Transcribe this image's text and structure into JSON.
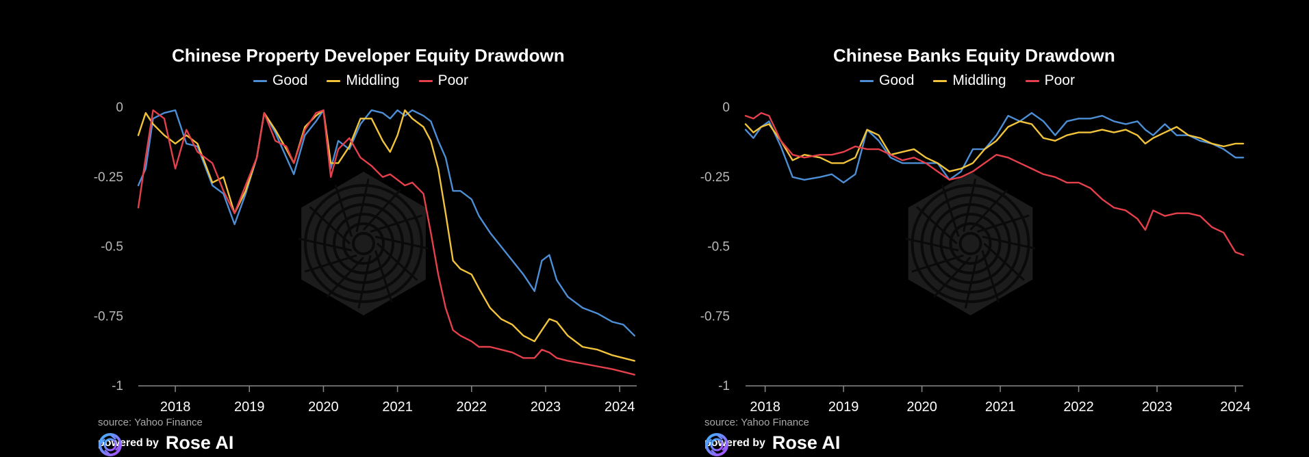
{
  "footer": {
    "source": "source: Yahoo Finance",
    "powered_by": "powered by",
    "brand": "Rose AI"
  },
  "logo_icon": "rose-ai-logo-icon",
  "watermark_icon": "rose-ai-hexagon-watermark-icon",
  "colors": {
    "Good": "#4d8fd6",
    "Middling": "#f2c43b",
    "Poor": "#e5404b",
    "axis": "#8a8a8a",
    "background": "#000000"
  },
  "chart_data": [
    {
      "type": "line",
      "title": "Chinese Property Developer Equity Drawdown",
      "xlabel": "",
      "ylabel": "",
      "ylim": [
        -1,
        0
      ],
      "xlim": [
        2017.5,
        2024.23
      ],
      "yticks": [
        0,
        -0.25,
        -0.5,
        -0.75,
        -1
      ],
      "ytick_labels": [
        "0",
        "-0.25",
        "-0.5",
        "-0.75",
        "-1"
      ],
      "xticks": [
        2018,
        2019,
        2020,
        2021,
        2022,
        2023,
        2024
      ],
      "xtick_labels": [
        "2018",
        "2019",
        "2020",
        "2021",
        "2022",
        "2023",
        "2024"
      ],
      "legend": "top-center",
      "grid": false,
      "x": [
        2017.5,
        2017.6,
        2017.7,
        2017.85,
        2018.0,
        2018.15,
        2018.3,
        2018.5,
        2018.65,
        2018.8,
        2018.95,
        2019.1,
        2019.2,
        2019.35,
        2019.5,
        2019.6,
        2019.75,
        2019.9,
        2020.0,
        2020.1,
        2020.2,
        2020.35,
        2020.5,
        2020.65,
        2020.8,
        2020.9,
        2021.0,
        2021.1,
        2021.2,
        2021.35,
        2021.45,
        2021.55,
        2021.65,
        2021.75,
        2021.85,
        2022.0,
        2022.1,
        2022.25,
        2022.4,
        2022.55,
        2022.7,
        2022.85,
        2022.95,
        2023.05,
        2023.15,
        2023.3,
        2023.5,
        2023.7,
        2023.9,
        2024.05,
        2024.2
      ],
      "series": [
        {
          "name": "Good",
          "values": [
            -0.28,
            -0.22,
            -0.04,
            -0.02,
            -0.01,
            -0.13,
            -0.14,
            -0.28,
            -0.31,
            -0.42,
            -0.31,
            -0.18,
            -0.02,
            -0.09,
            -0.18,
            -0.24,
            -0.1,
            -0.05,
            -0.01,
            -0.22,
            -0.12,
            -0.15,
            -0.06,
            -0.01,
            -0.02,
            -0.04,
            -0.01,
            -0.03,
            -0.01,
            -0.03,
            -0.05,
            -0.12,
            -0.18,
            -0.3,
            -0.3,
            -0.33,
            -0.39,
            -0.45,
            -0.5,
            -0.55,
            -0.6,
            -0.66,
            -0.55,
            -0.53,
            -0.62,
            -0.68,
            -0.72,
            -0.74,
            -0.77,
            -0.78,
            -0.82
          ]
        },
        {
          "name": "Middling",
          "values": [
            -0.1,
            -0.02,
            -0.06,
            -0.1,
            -0.13,
            -0.1,
            -0.13,
            -0.27,
            -0.25,
            -0.38,
            -0.3,
            -0.18,
            -0.02,
            -0.08,
            -0.15,
            -0.2,
            -0.07,
            -0.03,
            -0.01,
            -0.2,
            -0.2,
            -0.14,
            -0.04,
            -0.04,
            -0.12,
            -0.16,
            -0.1,
            -0.01,
            -0.04,
            -0.07,
            -0.12,
            -0.22,
            -0.38,
            -0.55,
            -0.58,
            -0.6,
            -0.65,
            -0.72,
            -0.76,
            -0.78,
            -0.82,
            -0.84,
            -0.8,
            -0.76,
            -0.77,
            -0.82,
            -0.86,
            -0.87,
            -0.89,
            -0.9,
            -0.91
          ]
        },
        {
          "name": "Poor",
          "values": [
            -0.36,
            -0.18,
            -0.01,
            -0.04,
            -0.22,
            -0.08,
            -0.16,
            -0.2,
            -0.3,
            -0.38,
            -0.28,
            -0.18,
            -0.02,
            -0.12,
            -0.14,
            -0.2,
            -0.08,
            -0.02,
            -0.01,
            -0.25,
            -0.15,
            -0.11,
            -0.18,
            -0.21,
            -0.25,
            -0.24,
            -0.26,
            -0.28,
            -0.27,
            -0.31,
            -0.45,
            -0.6,
            -0.72,
            -0.8,
            -0.82,
            -0.84,
            -0.86,
            -0.86,
            -0.87,
            -0.88,
            -0.9,
            -0.9,
            -0.87,
            -0.88,
            -0.9,
            -0.91,
            -0.92,
            -0.93,
            -0.94,
            -0.95,
            -0.96
          ]
        }
      ]
    },
    {
      "type": "line",
      "title": "Chinese Banks Equity Drawdown",
      "xlabel": "",
      "ylabel": "",
      "ylim": [
        -1,
        0
      ],
      "xlim": [
        2017.75,
        2024.1
      ],
      "yticks": [
        0,
        -0.25,
        -0.5,
        -0.75,
        -1
      ],
      "ytick_labels": [
        "0",
        "-0.25",
        "-0.5",
        "-0.75",
        "-1"
      ],
      "xticks": [
        2018,
        2019,
        2020,
        2021,
        2022,
        2023,
        2024
      ],
      "xtick_labels": [
        "2018",
        "2019",
        "2020",
        "2021",
        "2022",
        "2023",
        "2024"
      ],
      "legend": "top-center",
      "grid": false,
      "x": [
        2017.75,
        2017.85,
        2017.95,
        2018.05,
        2018.2,
        2018.35,
        2018.5,
        2018.7,
        2018.85,
        2019.0,
        2019.15,
        2019.3,
        2019.45,
        2019.6,
        2019.75,
        2019.9,
        2020.05,
        2020.2,
        2020.35,
        2020.5,
        2020.65,
        2020.8,
        2020.95,
        2021.1,
        2021.25,
        2021.4,
        2021.55,
        2021.7,
        2021.85,
        2022.0,
        2022.15,
        2022.3,
        2022.45,
        2022.6,
        2022.75,
        2022.85,
        2022.95,
        2023.1,
        2023.25,
        2023.4,
        2023.55,
        2023.7,
        2023.85,
        2024.0,
        2024.1
      ],
      "series": [
        {
          "name": "Good",
          "values": [
            -0.08,
            -0.11,
            -0.07,
            -0.05,
            -0.14,
            -0.25,
            -0.26,
            -0.25,
            -0.24,
            -0.27,
            -0.24,
            -0.08,
            -0.12,
            -0.18,
            -0.2,
            -0.2,
            -0.2,
            -0.2,
            -0.26,
            -0.23,
            -0.15,
            -0.15,
            -0.1,
            -0.03,
            -0.05,
            -0.02,
            -0.05,
            -0.1,
            -0.05,
            -0.04,
            -0.04,
            -0.03,
            -0.05,
            -0.06,
            -0.05,
            -0.08,
            -0.1,
            -0.06,
            -0.1,
            -0.1,
            -0.12,
            -0.13,
            -0.15,
            -0.18,
            -0.18
          ]
        },
        {
          "name": "Middling",
          "values": [
            -0.06,
            -0.09,
            -0.07,
            -0.06,
            -0.12,
            -0.19,
            -0.17,
            -0.18,
            -0.2,
            -0.2,
            -0.18,
            -0.08,
            -0.1,
            -0.17,
            -0.16,
            -0.15,
            -0.18,
            -0.2,
            -0.23,
            -0.22,
            -0.2,
            -0.15,
            -0.12,
            -0.07,
            -0.05,
            -0.06,
            -0.11,
            -0.12,
            -0.1,
            -0.09,
            -0.09,
            -0.08,
            -0.09,
            -0.08,
            -0.1,
            -0.13,
            -0.11,
            -0.09,
            -0.07,
            -0.1,
            -0.11,
            -0.13,
            -0.14,
            -0.13,
            -0.13
          ]
        },
        {
          "name": "Poor",
          "values": [
            -0.03,
            -0.04,
            -0.02,
            -0.03,
            -0.12,
            -0.17,
            -0.18,
            -0.17,
            -0.17,
            -0.16,
            -0.14,
            -0.15,
            -0.15,
            -0.17,
            -0.19,
            -0.18,
            -0.2,
            -0.23,
            -0.26,
            -0.25,
            -0.23,
            -0.2,
            -0.17,
            -0.18,
            -0.2,
            -0.22,
            -0.24,
            -0.25,
            -0.27,
            -0.27,
            -0.29,
            -0.33,
            -0.36,
            -0.37,
            -0.4,
            -0.44,
            -0.37,
            -0.39,
            -0.38,
            -0.38,
            -0.39,
            -0.43,
            -0.45,
            -0.52,
            -0.53
          ]
        }
      ]
    }
  ]
}
